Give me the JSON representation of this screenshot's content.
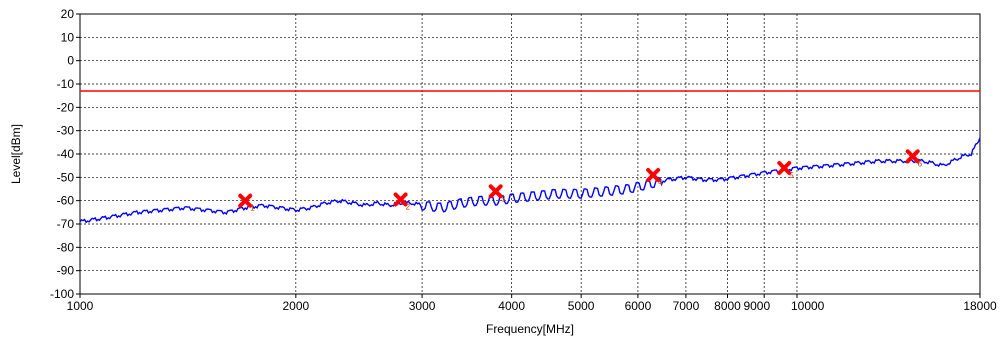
{
  "chart_data": {
    "type": "line",
    "xlabel": "Frequency[MHz]",
    "ylabel": "Level[dBm]",
    "x_scale": "log",
    "xlim": [
      1000,
      18000
    ],
    "ylim": [
      -100,
      20
    ],
    "grid": true,
    "x_ticks": [
      {
        "value": 1000,
        "label": "1000"
      },
      {
        "value": 2000,
        "label": "2000"
      },
      {
        "value": 3000,
        "label": "3000"
      },
      {
        "value": 4000,
        "label": "4000"
      },
      {
        "value": 5000,
        "label": "5000"
      },
      {
        "value": 6000,
        "label": "6000"
      },
      {
        "value": 7000,
        "label": "7000"
      },
      {
        "value": 8000,
        "label": "8000"
      },
      {
        "value": 9000,
        "label": "9000"
      },
      {
        "value": 10000,
        "label": "10000"
      },
      {
        "value": 18000,
        "label": "18000"
      }
    ],
    "y_ticks": [
      20,
      10,
      0,
      -10,
      -20,
      -30,
      -40,
      -50,
      -60,
      -70,
      -80,
      -90,
      -100
    ],
    "limit_line": {
      "value": -13,
      "color": "#ff0000"
    },
    "series": [
      {
        "color": "#0000ff",
        "x": [
          1000,
          1050,
          1100,
          1200,
          1300,
          1400,
          1500,
          1600,
          1700,
          1800,
          1900,
          2000,
          2100,
          2200,
          2300,
          2400,
          2500,
          2600,
          2700,
          2800,
          2900,
          3000,
          3200,
          3400,
          3600,
          3800,
          4000,
          4300,
          4600,
          5000,
          5400,
          5800,
          6200,
          6600,
          7000,
          7400,
          7800,
          8200,
          8600,
          9000,
          9500,
          10000,
          11000,
          12000,
          13000,
          14000,
          15000,
          16000,
          16500,
          17000,
          17500,
          18000
        ],
        "y": [
          -69,
          -68,
          -67,
          -65,
          -64,
          -63,
          -64,
          -65,
          -63,
          -62,
          -63,
          -64,
          -63,
          -61,
          -60,
          -61,
          -62,
          -61,
          -62,
          -61,
          -61,
          -62,
          -63,
          -61,
          -60,
          -60,
          -59,
          -58,
          -57,
          -57,
          -56,
          -55,
          -53,
          -51,
          -50,
          -51,
          -51,
          -50,
          -49,
          -48,
          -47,
          -46,
          -45,
          -44,
          -43,
          -43,
          -43,
          -45,
          -43,
          -41,
          -40,
          -33
        ]
      }
    ],
    "markers": [
      {
        "x": 1700,
        "y": -60,
        "label": "1"
      },
      {
        "x": 2800,
        "y": -59.5,
        "label": "2"
      },
      {
        "x": 3800,
        "y": -56,
        "label": "3"
      },
      {
        "x": 6300,
        "y": -49,
        "label": "4"
      },
      {
        "x": 9600,
        "y": -46,
        "label": "5"
      },
      {
        "x": 14500,
        "y": -41,
        "label": "6"
      }
    ]
  }
}
